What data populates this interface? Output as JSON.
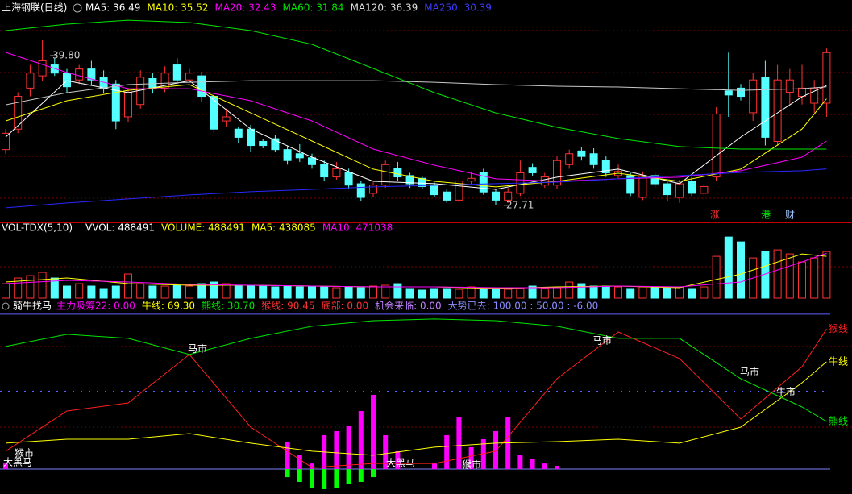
{
  "chart_data": [
    {
      "type": "candlestick",
      "title": "上海钢联(日线)",
      "header": [
        {
          "text": "MA5: 36.49",
          "color": "#ffffff"
        },
        {
          "text": "MA10: 35.52",
          "color": "#ffff00"
        },
        {
          "text": "MA20: 32.43",
          "color": "#ff00ff"
        },
        {
          "text": "MA60: 31.84",
          "color": "#00e600"
        },
        {
          "text": "MA120: 36.39",
          "color": "#e0e0e0"
        },
        {
          "text": "MA250: 30.39",
          "color": "#3c3cff"
        }
      ],
      "up_color": "#ff3232",
      "down_color": "#54ffff",
      "open": [
        31.8,
        33.3,
        36.3,
        37.2,
        38.0,
        37.4,
        36.9,
        37.7,
        37.1,
        36.6,
        34.2,
        35.1,
        37.0,
        36.3,
        38.0,
        36.9,
        37.2,
        35.7,
        33.9,
        33.3,
        33.3,
        32.4,
        32.6,
        31.8,
        31.5,
        31.2,
        30.7,
        29.8,
        30.1,
        29.3,
        28.6,
        29.2,
        30.4,
        29.9,
        29.7,
        29.2,
        28.7,
        28.1,
        29.5,
        30.1,
        28.7,
        28.1,
        28.6,
        30.5,
        29.2,
        29.2,
        30.7,
        31.7,
        31.5,
        31.0,
        29.9,
        29.9,
        28.3,
        29.9,
        29.3,
        28.3,
        29.5,
        28.6,
        29.8,
        36.1,
        36.3,
        34.5,
        37.1,
        32.4,
        36.0,
        35.7,
        35.2,
        35.2
      ],
      "close": [
        33.0,
        35.7,
        37.4,
        38.3,
        37.4,
        36.4,
        37.7,
        36.9,
        36.3,
        33.9,
        36.0,
        37.1,
        36.3,
        37.4,
        36.9,
        37.4,
        35.7,
        33.3,
        34.2,
        32.7,
        32.1,
        32.1,
        31.8,
        31.0,
        31.2,
        30.7,
        29.8,
        30.4,
        29.2,
        28.3,
        29.2,
        30.7,
        29.8,
        29.3,
        29.1,
        28.5,
        28.1,
        29.5,
        29.7,
        28.7,
        28.1,
        28.7,
        30.1,
        30.1,
        29.8,
        31.0,
        31.5,
        31.3,
        30.7,
        30.1,
        30.2,
        28.6,
        29.9,
        29.3,
        28.5,
        29.3,
        28.6,
        29.1,
        34.4,
        35.8,
        35.7,
        36.9,
        32.7,
        36.9,
        36.9,
        36.3,
        36.3,
        38.9
      ],
      "high": [
        33.3,
        36.0,
        38.0,
        39.8,
        38.5,
        37.7,
        38.0,
        38.3,
        37.6,
        36.9,
        36.3,
        37.6,
        37.4,
        37.9,
        38.5,
        37.7,
        37.5,
        35.9,
        34.8,
        33.5,
        33.6,
        32.6,
        32.9,
        32.1,
        32.2,
        31.5,
        31.0,
        30.9,
        30.4,
        29.5,
        29.4,
        31.0,
        30.9,
        30.1,
        29.9,
        29.4,
        28.9,
        29.8,
        30.2,
        30.4,
        28.9,
        29.0,
        31.0,
        30.8,
        30.1,
        31.3,
        31.8,
        32.0,
        31.9,
        31.3,
        30.7,
        30.1,
        30.2,
        30.1,
        29.5,
        29.6,
        29.8,
        29.3,
        34.9,
        38.9,
        36.6,
        37.4,
        38.3,
        38.0,
        37.7,
        38.0,
        36.9,
        39.2
      ],
      "low": [
        31.5,
        33.0,
        35.7,
        36.8,
        37.2,
        36.0,
        36.6,
        36.5,
        35.9,
        33.3,
        33.8,
        34.8,
        35.9,
        36.0,
        36.6,
        36.7,
        35.3,
        33.0,
        33.5,
        32.3,
        31.6,
        31.9,
        31.6,
        30.7,
        30.9,
        30.4,
        29.5,
        29.6,
        28.9,
        28.0,
        28.3,
        29.0,
        29.5,
        29.0,
        28.9,
        28.3,
        27.9,
        27.9,
        29.2,
        28.5,
        27.71,
        27.9,
        28.4,
        29.9,
        29.0,
        28.9,
        30.4,
        31.0,
        30.4,
        29.8,
        29.7,
        28.4,
        28.1,
        29.0,
        28.0,
        27.9,
        28.4,
        28.1,
        29.5,
        34.2,
        35.4,
        33.9,
        32.1,
        32.1,
        35.1,
        35.1,
        34.5,
        34.2
      ],
      "series": [
        {
          "color": "#ffffff",
          "x": [
            0,
            5,
            10,
            15,
            20,
            25,
            30,
            35,
            40,
            45,
            50,
            55,
            60,
            65,
            67
          ],
          "values": [
            32.72,
            36.85,
            35.97,
            36.85,
            33.31,
            31.25,
            29.48,
            29.31,
            28.89,
            29.78,
            30.37,
            29.31,
            32.72,
            35.67,
            36.49
          ]
        },
        {
          "color": "#ffff00",
          "x": [
            0,
            5,
            10,
            15,
            20,
            25,
            30,
            35,
            40,
            45,
            50,
            55,
            60,
            65,
            67
          ],
          "values": [
            33.9,
            35.38,
            36.14,
            36.56,
            34.49,
            32.43,
            30.37,
            29.48,
            29.07,
            29.48,
            30.07,
            29.48,
            30.37,
            33.31,
            35.52
          ]
        },
        {
          "color": "#ff00ff",
          "x": [
            0,
            5,
            10,
            15,
            20,
            25,
            30,
            35,
            40,
            45,
            50,
            55,
            60,
            65,
            67
          ],
          "values": [
            38.92,
            37.44,
            36.26,
            36.26,
            35.38,
            33.9,
            31.84,
            30.66,
            29.66,
            29.48,
            29.66,
            29.78,
            30.25,
            31.25,
            32.43
          ]
        },
        {
          "color": "#00e600",
          "x": [
            0,
            5,
            10,
            15,
            20,
            25,
            30,
            35,
            40,
            45,
            50,
            55,
            60,
            65,
            67
          ],
          "values": [
            40.51,
            40.98,
            41.27,
            41.1,
            40.51,
            39.51,
            37.74,
            35.97,
            34.49,
            33.43,
            32.61,
            32.02,
            31.84,
            31.84,
            31.84
          ]
        },
        {
          "color": "#c8c8c8",
          "x": [
            0,
            5,
            10,
            15,
            20,
            25,
            30,
            35,
            40,
            45,
            50,
            55,
            60,
            65,
            67
          ],
          "values": [
            35.08,
            35.97,
            36.56,
            36.73,
            36.85,
            36.85,
            36.85,
            36.73,
            36.56,
            36.44,
            36.38,
            36.26,
            36.14,
            36.26,
            36.39
          ]
        },
        {
          "color": "#2828ff",
          "x": [
            0,
            5,
            10,
            15,
            20,
            25,
            30,
            35,
            40,
            45,
            50,
            55,
            60,
            65,
            67
          ],
          "values": [
            27.54,
            27.89,
            28.19,
            28.48,
            28.72,
            28.89,
            29.07,
            29.19,
            29.31,
            29.42,
            29.66,
            29.89,
            30.13,
            30.25,
            30.39
          ]
        }
      ],
      "ylim": [
        26.53,
        41.69
      ],
      "annotations": [
        "39.80",
        "27.71"
      ],
      "tags": [
        {
          "text": "涨",
          "color": "#ff3232"
        },
        {
          "text": "港",
          "color": "#00e600"
        },
        {
          "text": "财",
          "color": "#a0c8ff"
        }
      ]
    },
    {
      "type": "bar",
      "title": "VOL-TDX(5,10)",
      "header": [
        {
          "text": "VVOL: 488491",
          "color": "#ffffff"
        },
        {
          "text": "VOLUME: 488491",
          "color": "#ffff00"
        },
        {
          "text": "MA5: 438085",
          "color": "#ffff00"
        },
        {
          "text": "MA10: 471038",
          "color": "#ff00ff"
        }
      ],
      "values": [
        151600,
        210600,
        235800,
        269500,
        210600,
        126300,
        151600,
        126300,
        101100,
        126300,
        252700,
        151600,
        126300,
        126300,
        134800,
        126300,
        151600,
        168400,
        151600,
        126300,
        134800,
        126300,
        117900,
        126300,
        117900,
        126300,
        117900,
        109500,
        117900,
        109500,
        126300,
        134800,
        151600,
        101100,
        84200,
        101100,
        101100,
        92600,
        117900,
        101100,
        101100,
        92600,
        101100,
        126300,
        101100,
        109500,
        168400,
        151600,
        126300,
        126300,
        117900,
        101100,
        117900,
        117900,
        109500,
        117900,
        101100,
        117900,
        437900,
        640100,
        589500,
        421100,
        488500,
        505300,
        463200,
        379000,
        421100,
        488491
      ],
      "series": [
        {
          "color": "#ffff00",
          "x": [
            0,
            5,
            10,
            15,
            20,
            25,
            30,
            35,
            40,
            45,
            50,
            55,
            60,
            65,
            67
          ],
          "values": [
            168400,
            210600,
            151600,
            134800,
            134800,
            126300,
            117900,
            117900,
            101100,
            117900,
            126300,
            109500,
            252700,
            463200,
            438085
          ]
        },
        {
          "color": "#ff00ff",
          "x": [
            0,
            5,
            10,
            15,
            20,
            25,
            30,
            35,
            40,
            45,
            50,
            55,
            60,
            65,
            67
          ],
          "values": [
            151600,
            185300,
            168400,
            143200,
            134800,
            126300,
            117900,
            117900,
            109500,
            109500,
            126300,
            117900,
            168400,
            379000,
            471038
          ]
        }
      ],
      "ylim": [
        0,
        675000
      ]
    },
    {
      "type": "line",
      "title": "骑牛找马",
      "header": [
        {
          "text": "主力吸筹22: 0.00",
          "color": "#ff00ff"
        },
        {
          "text": "牛线: 69.30",
          "color": "#ffff00"
        },
        {
          "text": "熊线: 30.70",
          "color": "#00e600"
        },
        {
          "text": "猴线: 90.45",
          "color": "#ff3232"
        },
        {
          "text": "底部: 0.00",
          "color": "#ff3232"
        },
        {
          "text": "机会来临: 0.00",
          "color": "#c080ff"
        },
        {
          "text": "大势已去: 100.00 : 50.00 : -6.00",
          "color": "#8c8cff"
        }
      ],
      "series": [
        {
          "name": "猴线",
          "color": "#ff2020",
          "x": [
            0,
            5,
            10,
            15,
            20,
            25,
            30,
            35,
            40,
            45,
            50,
            55,
            60,
            65,
            67
          ],
          "values": [
            11.5,
            37.5,
            42.7,
            74.0,
            27.1,
            1.0,
            3.6,
            3.6,
            11.5,
            58.3,
            88.5,
            71.4,
            32.3,
            66.1,
            90.45
          ]
        },
        {
          "name": "牛线",
          "color": "#ffff00",
          "x": [
            0,
            5,
            10,
            15,
            20,
            25,
            30,
            35,
            40,
            45,
            50,
            55,
            60,
            65,
            67
          ],
          "values": [
            16.7,
            19.3,
            19.3,
            22.9,
            16.7,
            11.5,
            8.9,
            14.1,
            16.7,
            17.7,
            19.3,
            16.7,
            27.1,
            55.7,
            69.3
          ]
        },
        {
          "name": "熊线",
          "color": "#00e600",
          "x": [
            0,
            5,
            10,
            15,
            20,
            25,
            30,
            35,
            40,
            45,
            50,
            55,
            60,
            65,
            67
          ],
          "values": [
            79.2,
            87.0,
            84.4,
            74.0,
            84.4,
            92.2,
            95.8,
            96.9,
            95.8,
            92.2,
            84.4,
            84.4,
            58.3,
            40.1,
            30.7
          ]
        }
      ],
      "bars": [
        {
          "color": "#ff00ff",
          "x": [
            0,
            23,
            24,
            25,
            26,
            27,
            28,
            29,
            30,
            31,
            32,
            35,
            36,
            37,
            38,
            39,
            40,
            41,
            42,
            43,
            44,
            45
          ],
          "values": [
            3.6,
            17.7,
            8.9,
            3.6,
            21.9,
            24.5,
            28.1,
            37.5,
            47.9,
            21.9,
            11.5,
            3.6,
            21.9,
            33.3,
            14.1,
            19.3,
            24.5,
            33.3,
            8.9,
            6.3,
            3.6,
            2.1
          ]
        },
        {
          "color": "#00ff00",
          "x": [
            23,
            24,
            25,
            26,
            27,
            28,
            29,
            30
          ],
          "values": [
            -5.2,
            -8.3,
            -12.0,
            -13.0,
            -12.0,
            -9.4,
            -8.3,
            -5.2
          ]
        }
      ],
      "reference_lines": [
        {
          "value": 100,
          "color": "#6060ff",
          "style": "solid"
        },
        {
          "value": 50,
          "color": "#6060ff",
          "style": "dotted"
        },
        {
          "value": 0,
          "color": "#8080ff",
          "style": "solid"
        }
      ],
      "ylim": [
        -15.6,
        101
      ],
      "annotations": [
        "马市",
        "马市",
        "马市",
        "牛市",
        "猴市",
        "大黑马",
        "大黑马",
        "猴市"
      ]
    }
  ]
}
